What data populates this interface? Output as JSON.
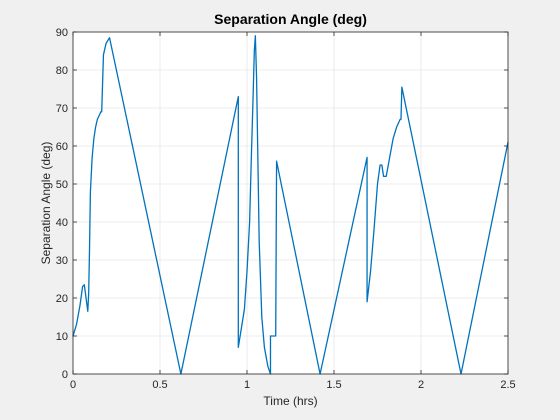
{
  "chart_data": {
    "type": "line",
    "title": "Separation Angle (deg)",
    "xlabel": "Time (hrs)",
    "ylabel": "Separation Angle (deg)",
    "xlim": [
      0,
      2.5
    ],
    "ylim": [
      0,
      90
    ],
    "x_ticks": [
      0,
      0.5,
      1,
      1.5,
      2,
      2.5
    ],
    "x_tick_labels": [
      "0",
      "0.5",
      "1",
      "1.5",
      "2",
      "2.5"
    ],
    "y_ticks": [
      0,
      10,
      20,
      30,
      40,
      50,
      60,
      70,
      80,
      90
    ],
    "y_tick_labels": [
      "0",
      "10",
      "20",
      "30",
      "40",
      "50",
      "60",
      "70",
      "80",
      "90"
    ],
    "grid": true,
    "colors": {
      "line": "#0072BD",
      "plot_bg": "#ffffff",
      "figure_bg": "#f0f0f0",
      "grid": "#dedede",
      "axis": "#262626"
    },
    "series": [
      {
        "x": [
          0.0,
          0.02,
          0.04,
          0.055,
          0.065,
          0.075,
          0.085,
          0.09,
          0.095,
          0.1,
          0.11,
          0.12,
          0.13,
          0.14,
          0.15,
          0.16,
          0.165,
          0.175,
          0.19,
          0.21,
          0.62,
          0.95,
          0.95,
          0.985,
          1.0,
          1.015,
          1.025,
          1.035,
          1.042,
          1.048,
          1.055,
          1.062,
          1.07,
          1.085,
          1.1,
          1.12,
          1.135,
          1.135,
          1.165,
          1.17,
          1.42,
          1.69,
          1.69,
          1.71,
          1.73,
          1.75,
          1.765,
          1.775,
          1.785,
          1.8,
          1.82,
          1.84,
          1.86,
          1.88,
          1.885,
          1.89,
          2.23,
          2.5
        ],
        "y": [
          10,
          13,
          18,
          23,
          23.5,
          20,
          16.5,
          21,
          33,
          48,
          57,
          62,
          65,
          67,
          68,
          69,
          69,
          84,
          87,
          88.5,
          0,
          73,
          7,
          17,
          27,
          40,
          57,
          73,
          85,
          89,
          78,
          58,
          35,
          15,
          7,
          2,
          0,
          10,
          10,
          56,
          0,
          57,
          19,
          27,
          38,
          50,
          55,
          55,
          52,
          52,
          57,
          62,
          65,
          67,
          67,
          75.5,
          0,
          61
        ]
      }
    ]
  }
}
